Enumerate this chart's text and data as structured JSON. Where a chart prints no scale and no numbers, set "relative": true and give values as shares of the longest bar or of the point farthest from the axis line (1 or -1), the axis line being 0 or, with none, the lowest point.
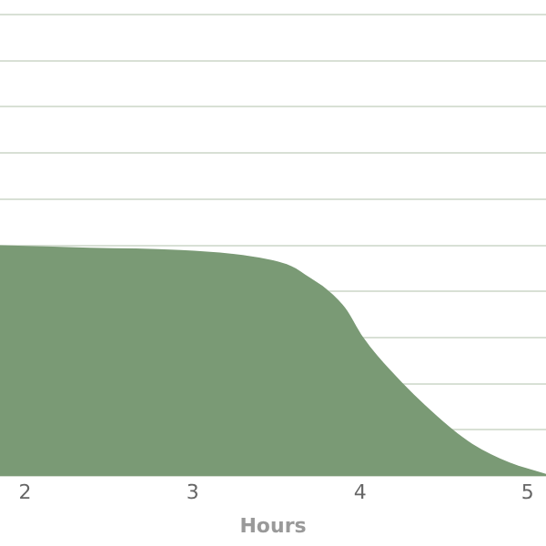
{
  "chart_data": {
    "type": "area",
    "xlabel": "Hours",
    "relative": true,
    "grid": "y",
    "x": [
      1.85,
      2.39,
      2.93,
      3.37,
      3.59,
      3.7,
      3.8,
      3.91,
      4.02,
      4.18,
      4.46,
      4.67,
      4.89,
      5.11
    ],
    "series": [
      {
        "color": "#7a9a75",
        "values": [
          1.0,
          0.99,
          0.98,
          0.95,
          0.91,
          0.86,
          0.81,
          0.73,
          0.6,
          0.46,
          0.26,
          0.14,
          0.06,
          0.01
        ]
      }
    ],
    "xlim": [
      1.85,
      5.11
    ],
    "xticks": [
      2,
      3,
      4,
      5
    ]
  }
}
